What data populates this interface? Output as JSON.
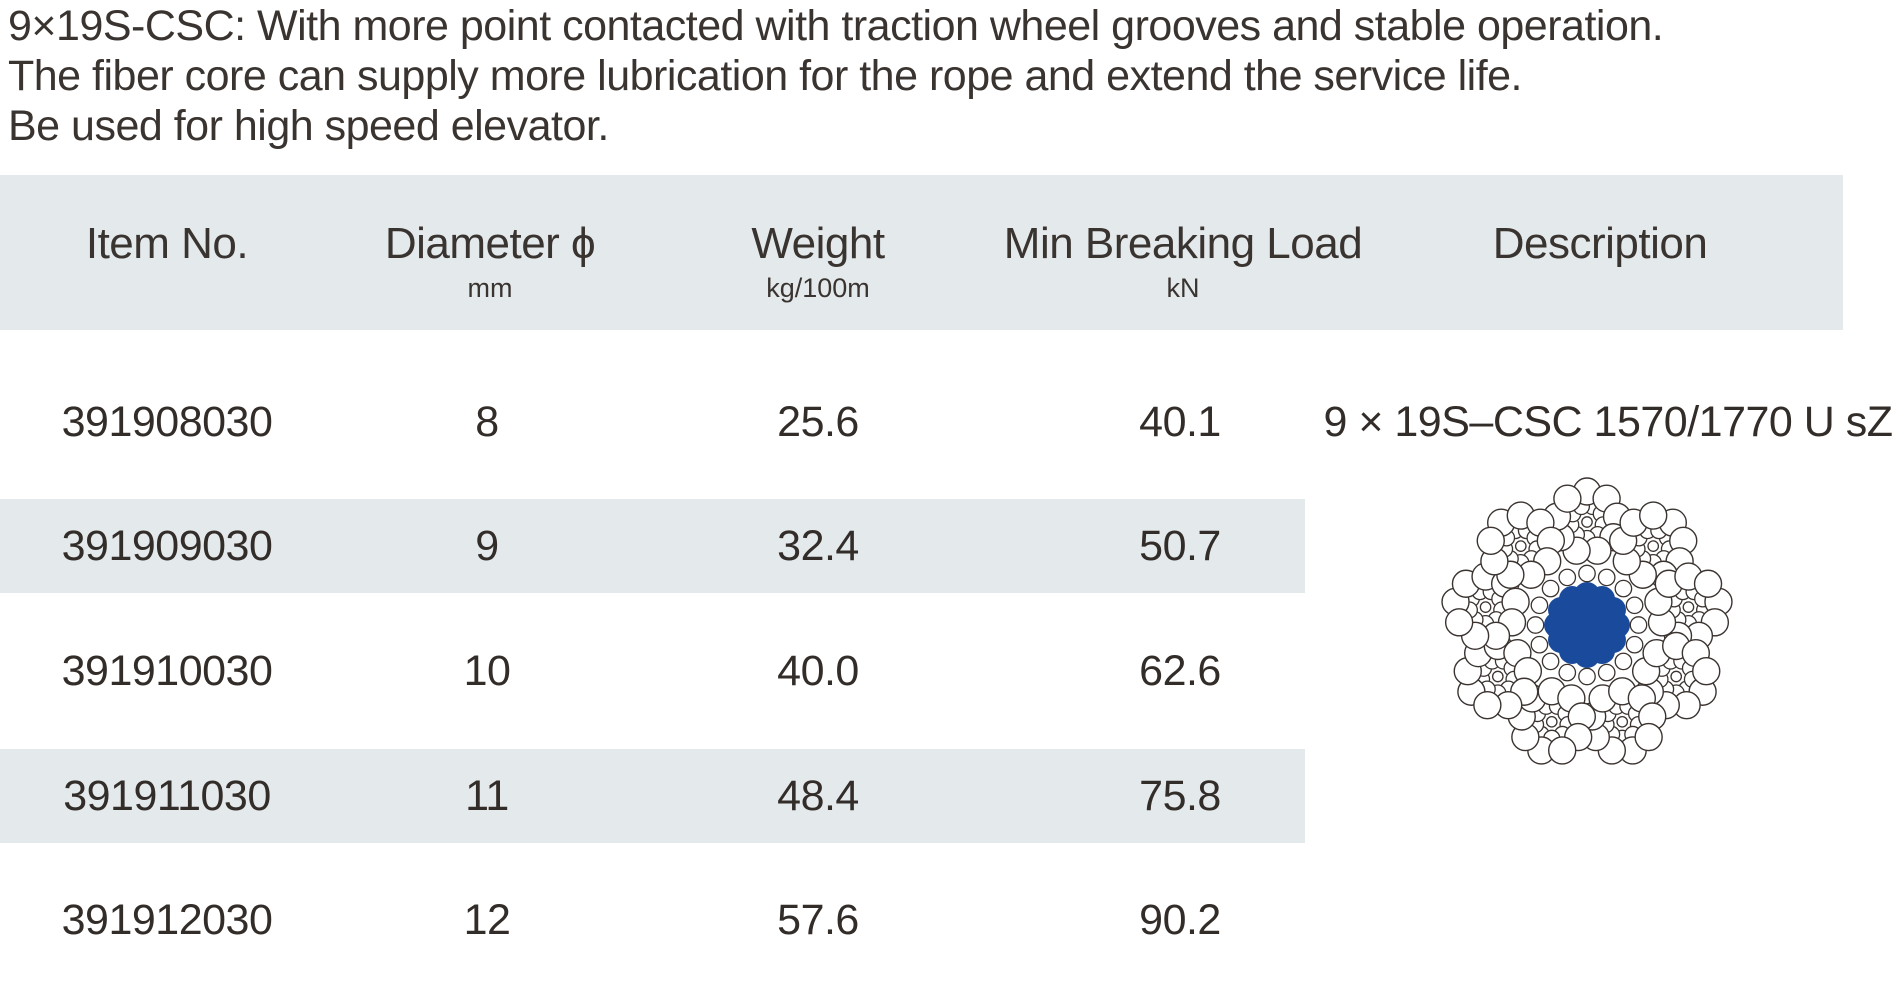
{
  "page": {
    "background": "#ffffff"
  },
  "intro": {
    "lines": [
      "9×19S-CSC: With more point contacted with traction wheel grooves and stable operation.",
      "The fiber core can supply more lubrication for the rope and extend the service life.",
      "Be used for high speed elevator."
    ]
  },
  "table": {
    "header_bg": "#e4e9ec",
    "stripe_bg": "#e4e9ec",
    "columns": [
      {
        "label": "Item No.",
        "unit": ""
      },
      {
        "label": "Diameter ϕ",
        "unit": "mm"
      },
      {
        "label": "Weight",
        "unit": "kg/100m"
      },
      {
        "label": "Min Breaking Load",
        "unit": "kN"
      },
      {
        "label": "Description",
        "unit": ""
      }
    ],
    "rows": [
      {
        "item_no": "391908030",
        "diameter_mm": "8",
        "weight_kg_100m": "25.6",
        "min_breaking_load_kn": "40.1"
      },
      {
        "item_no": "391909030",
        "diameter_mm": "9",
        "weight_kg_100m": "32.4",
        "min_breaking_load_kn": "50.7"
      },
      {
        "item_no": "391910030",
        "diameter_mm": "10",
        "weight_kg_100m": "40.0",
        "min_breaking_load_kn": "62.6"
      },
      {
        "item_no": "391911030",
        "diameter_mm": "11",
        "weight_kg_100m": "48.4",
        "min_breaking_load_kn": "75.8"
      },
      {
        "item_no": "391912030",
        "diameter_mm": "12",
        "weight_kg_100m": "57.6",
        "min_breaking_load_kn": "90.2"
      }
    ],
    "description_text": "9 × 19S–CSC 1570/1770 U sZ"
  },
  "diagram": {
    "name": "9x19S-CSC wire rope cross-section",
    "strand_count": 9,
    "wires_per_strand": 19,
    "core_color": "#1a4a9c",
    "wire_fill": "#ffffff",
    "wire_outline": "#3a3330"
  },
  "colors": {
    "text": "#383230",
    "band": "#e4e9ec",
    "core_blue": "#1a4a9c"
  }
}
